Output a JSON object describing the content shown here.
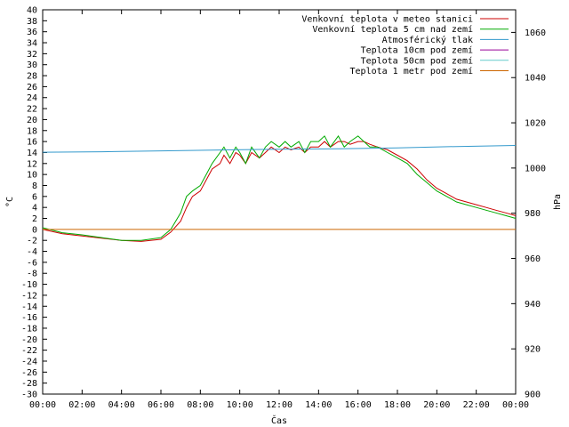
{
  "chart_data": {
    "type": "line",
    "xlabel": "Čas",
    "ylabel": "°C",
    "y2label": "hPa",
    "xlim": [
      0,
      24
    ],
    "ylim": [
      -30,
      40
    ],
    "y2lim": [
      900,
      1070
    ],
    "x_ticks": [
      "00:00",
      "02:00",
      "04:00",
      "06:00",
      "08:00",
      "10:00",
      "12:00",
      "14:00",
      "16:00",
      "18:00",
      "20:00",
      "22:00",
      "00:00"
    ],
    "y_ticks": [
      -30,
      -28,
      -26,
      -24,
      -22,
      -20,
      -18,
      -16,
      -14,
      -12,
      -10,
      -8,
      -6,
      -4,
      -2,
      0,
      2,
      4,
      6,
      8,
      10,
      12,
      14,
      16,
      18,
      20,
      22,
      24,
      26,
      28,
      30,
      32,
      34,
      36,
      38,
      40
    ],
    "y2_ticks": [
      900,
      920,
      940,
      960,
      980,
      1000,
      1020,
      1040,
      1060
    ],
    "legend_position": "top-right",
    "series": [
      {
        "name": "Venkovní teplota v meteo stanici",
        "color": "#cc0000",
        "axis": "left",
        "x": [
          0,
          1,
          2,
          3,
          4,
          5,
          6,
          6.5,
          7,
          7.3,
          7.6,
          8,
          8.3,
          8.6,
          9,
          9.2,
          9.5,
          9.8,
          10,
          10.3,
          10.6,
          11,
          11.3,
          11.6,
          12,
          12.3,
          12.6,
          13,
          13.3,
          13.6,
          14,
          14.3,
          14.6,
          15,
          15.3,
          15.6,
          16,
          16.3,
          16.6,
          17,
          17.5,
          18,
          18.5,
          19,
          19.5,
          20,
          20.5,
          21,
          21.5,
          22,
          22.5,
          23,
          23.5,
          24
        ],
        "y": [
          0,
          -0.8,
          -1.2,
          -1.6,
          -2,
          -2.2,
          -1.8,
          -0.5,
          1.5,
          4,
          6,
          7,
          9,
          11,
          12,
          13.5,
          12,
          14,
          13.5,
          12,
          14,
          13,
          14,
          15,
          14,
          15,
          14.5,
          15,
          14,
          15,
          15,
          16,
          15,
          16,
          16,
          15.5,
          16,
          16,
          15.5,
          15,
          14.5,
          13.5,
          12.5,
          11,
          9,
          7.5,
          6.5,
          5.5,
          5,
          4.5,
          4,
          3.5,
          3,
          2.5
        ]
      },
      {
        "name": "Venkovní teplota 5 cm nad zemí",
        "color": "#00aa00",
        "axis": "left",
        "x": [
          0,
          1,
          2,
          3,
          4,
          5,
          6,
          6.5,
          7,
          7.3,
          7.6,
          8,
          8.3,
          8.6,
          9,
          9.2,
          9.5,
          9.8,
          10,
          10.3,
          10.6,
          11,
          11.3,
          11.6,
          12,
          12.3,
          12.6,
          13,
          13.3,
          13.6,
          14,
          14.3,
          14.6,
          15,
          15.3,
          15.6,
          16,
          16.3,
          16.6,
          17,
          17.5,
          18,
          18.5,
          19,
          19.5,
          20,
          20.5,
          21,
          21.5,
          22,
          22.5,
          23,
          23.5,
          24
        ],
        "y": [
          0.3,
          -0.6,
          -1,
          -1.5,
          -2,
          -2,
          -1.5,
          0,
          3,
          6,
          7,
          8,
          10,
          12,
          14,
          15,
          13,
          15,
          14,
          12,
          15,
          13,
          15,
          16,
          15,
          16,
          15,
          16,
          14,
          16,
          16,
          17,
          15,
          17,
          15,
          16,
          17,
          16,
          15,
          15,
          14,
          13,
          12,
          10,
          8.5,
          7,
          6,
          5,
          4.5,
          4,
          3.5,
          3,
          2.5,
          2
        ]
      },
      {
        "name": "Atmosférický tlak",
        "color": "#3399cc",
        "axis": "right",
        "x": [
          0,
          3,
          6,
          9,
          12,
          15,
          18,
          21,
          24
        ],
        "y": [
          1007,
          1007.2,
          1007.6,
          1008,
          1008.3,
          1008.5,
          1008.9,
          1009.5,
          1010
        ]
      },
      {
        "name": "Teplota 10cm pod zemí",
        "color": "#990099",
        "axis": "left",
        "x": [],
        "y": []
      },
      {
        "name": "Teplota 50cm pod zemí",
        "color": "#66cccc",
        "axis": "left",
        "x": [],
        "y": []
      },
      {
        "name": "Teplota 1 metr pod zemí",
        "color": "#cc6600",
        "axis": "left",
        "x": [
          0,
          24
        ],
        "y": [
          0,
          0
        ]
      }
    ]
  }
}
